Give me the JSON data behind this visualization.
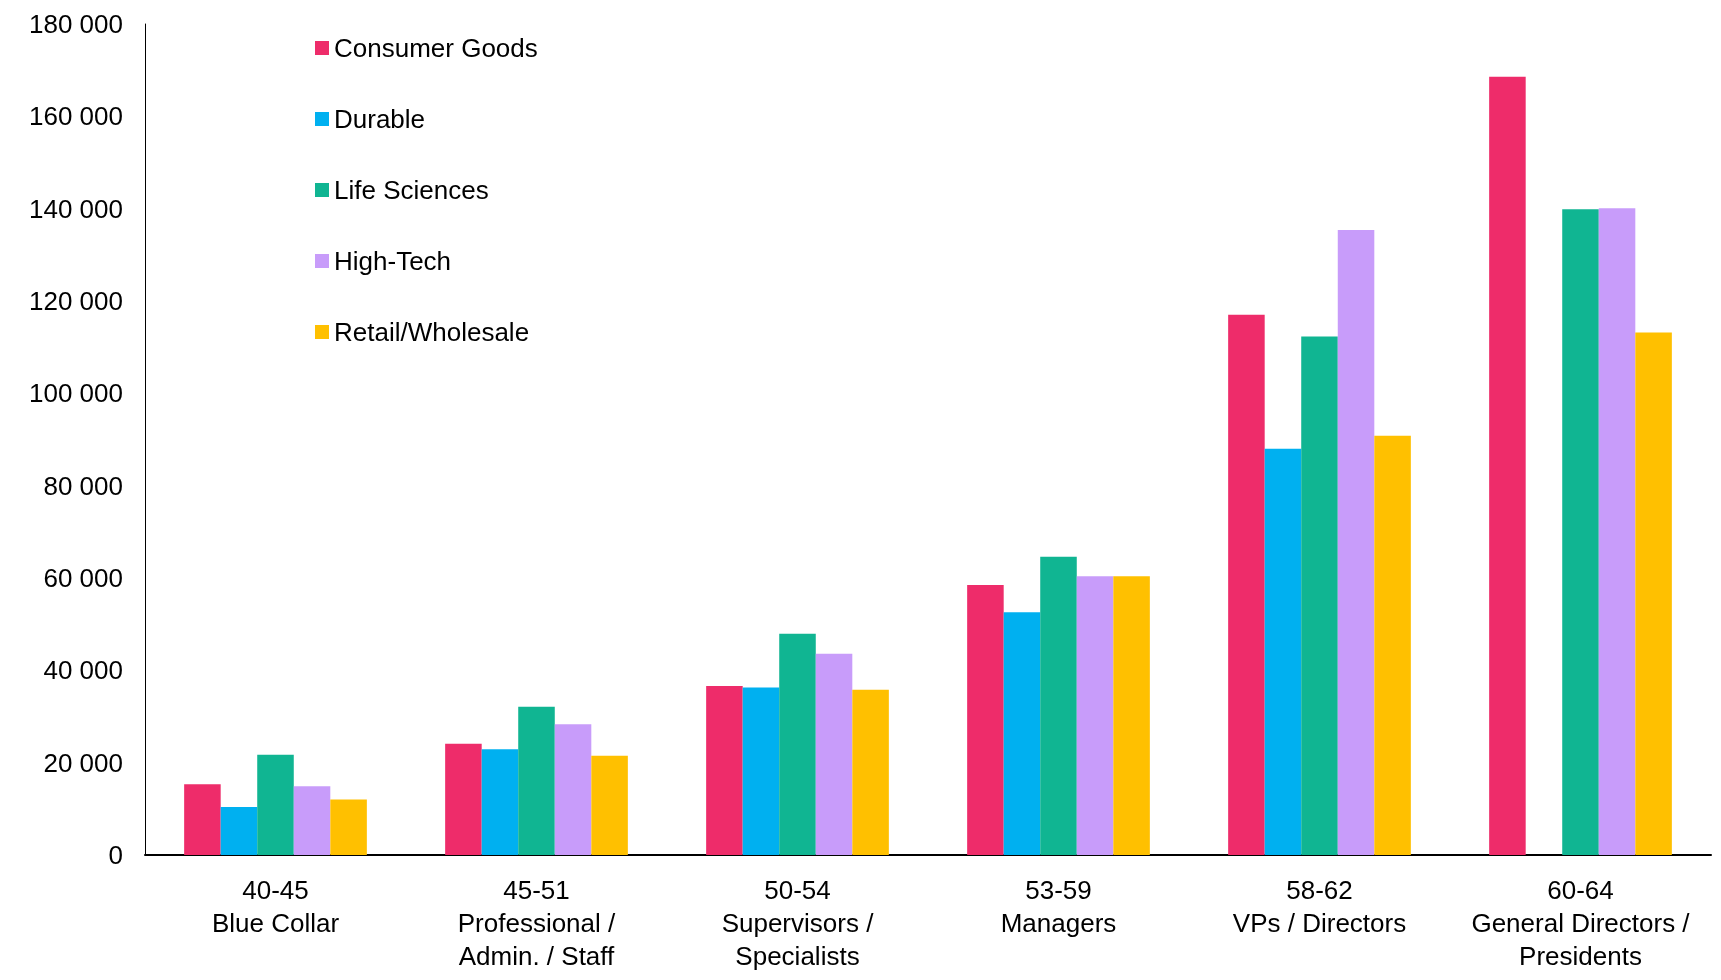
{
  "chart_data": {
    "type": "bar",
    "categories": [
      "40-45\nBlue Collar",
      "45-51\nProfessional /\nAdmin. / Staff",
      "50-54\nSupervisors /\nSpecialists",
      "53-59\nManagers",
      "58-62\nVPs / Directors",
      "60-64\nGeneral Directors /\nPresidents"
    ],
    "series": [
      {
        "name": "Consumer Goods",
        "color": "#ee2c6a",
        "values": [
          15300,
          24100,
          36600,
          58500,
          117000,
          168600
        ]
      },
      {
        "name": "Durable",
        "color": "#00b0f0",
        "values": [
          10400,
          22900,
          36300,
          52600,
          88000,
          null
        ]
      },
      {
        "name": "Life Sciences",
        "color": "#10b592",
        "values": [
          21700,
          32100,
          47900,
          64600,
          112300,
          139900
        ]
      },
      {
        "name": "High-Tech",
        "color": "#c89cfa",
        "values": [
          14900,
          28300,
          43600,
          60400,
          135400,
          140100
        ]
      },
      {
        "name": "Retail/Wholesale",
        "color": "#ffc000",
        "values": [
          12000,
          21500,
          35800,
          60400,
          90800,
          113200
        ]
      }
    ],
    "ylim": [
      0,
      180000
    ],
    "yticks": [
      {
        "value": 0,
        "label": "0"
      },
      {
        "value": 20000,
        "label": "20 000"
      },
      {
        "value": 40000,
        "label": "40 000"
      },
      {
        "value": 60000,
        "label": "60 000"
      },
      {
        "value": 80000,
        "label": "80 000"
      },
      {
        "value": 100000,
        "label": "100 000"
      },
      {
        "value": 120000,
        "label": "120 000"
      },
      {
        "value": 140000,
        "label": "140 000"
      },
      {
        "value": 160000,
        "label": "160 000"
      },
      {
        "value": 180000,
        "label": "180 000"
      }
    ],
    "grid": false,
    "legend": "top left"
  }
}
